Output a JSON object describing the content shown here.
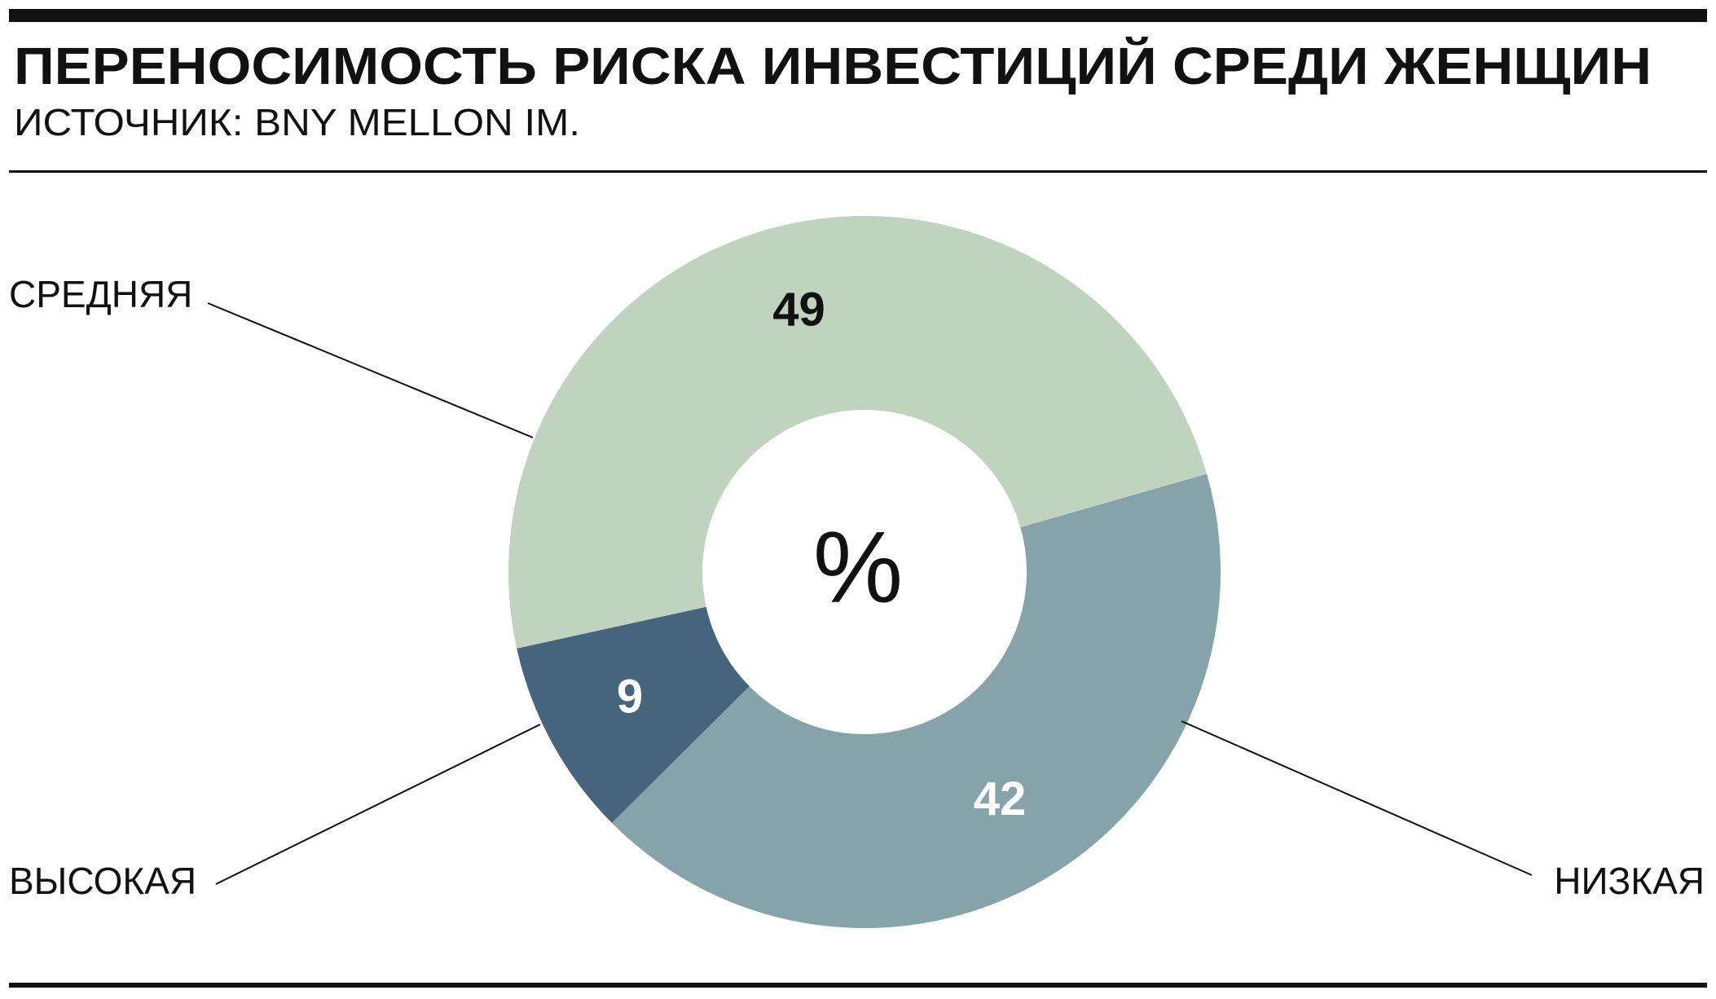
{
  "chart_data": {
    "type": "pie",
    "title": "ПЕРЕНОСИМОСТЬ РИСКА ИНВЕСТИЦИЙ СРЕДИ ЖЕНЩИН",
    "subtitle": "ИСТОЧНИК: BNY MELLON IM.",
    "center_label": "%",
    "categories": [
      "НИЗКАЯ",
      "ВЫСОКАЯ",
      "СРЕДНЯЯ"
    ],
    "values": [
      42,
      9,
      49
    ],
    "colors": [
      "#87a3aa",
      "#46647d",
      "#bfd3bf"
    ]
  }
}
